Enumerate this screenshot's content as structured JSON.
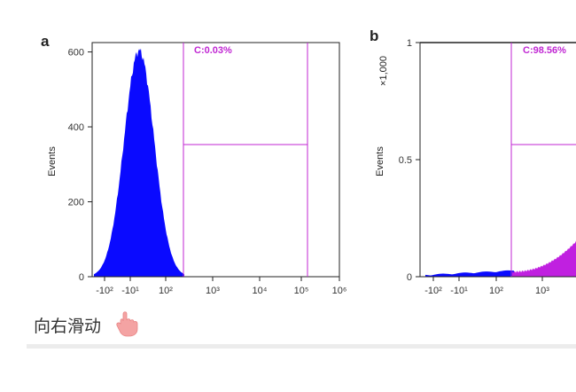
{
  "colors": {
    "histogram_a": "#0a0aff",
    "histogram_b_neg": "#0a0aff",
    "histogram_b_pos": "#c020e0",
    "gate": "#c026d3"
  },
  "chart_data": [
    {
      "type": "area",
      "panel": "a",
      "ylabel": "Events",
      "yticks": [
        "0",
        "200",
        "400",
        "600"
      ],
      "ytick_values": [
        0,
        200,
        400,
        600
      ],
      "ylim": [
        0,
        625
      ],
      "xticks": [
        "-10²",
        "-10¹",
        "10²",
        "10³",
        "10⁴",
        "10⁵",
        "10⁶"
      ],
      "xscale": "biexponential",
      "gate": {
        "label": "C:0.03%",
        "x_from": "≈10²·³",
        "x_to": "≈10⁵·²",
        "y_level": 355
      },
      "peak": {
        "x": "≈-10¹",
        "y": 625
      }
    },
    {
      "type": "area",
      "panel": "b",
      "ylabel": "Events",
      "y_multiplier": "×1,000",
      "yticks": [
        "0",
        "0.5",
        "1"
      ],
      "ytick_values": [
        0,
        0.5,
        1
      ],
      "ylim": [
        0,
        1
      ],
      "xticks": [
        "-10²",
        "-10¹",
        "10²",
        "10³"
      ],
      "xscale": "biexponential",
      "gate": {
        "label": "C:98.56%",
        "x_from": "≈10²·³",
        "y_level": 0.57
      }
    }
  ],
  "footer": {
    "swipe_label": "向右滑动",
    "hand_icon": "pointing-hand-icon"
  }
}
